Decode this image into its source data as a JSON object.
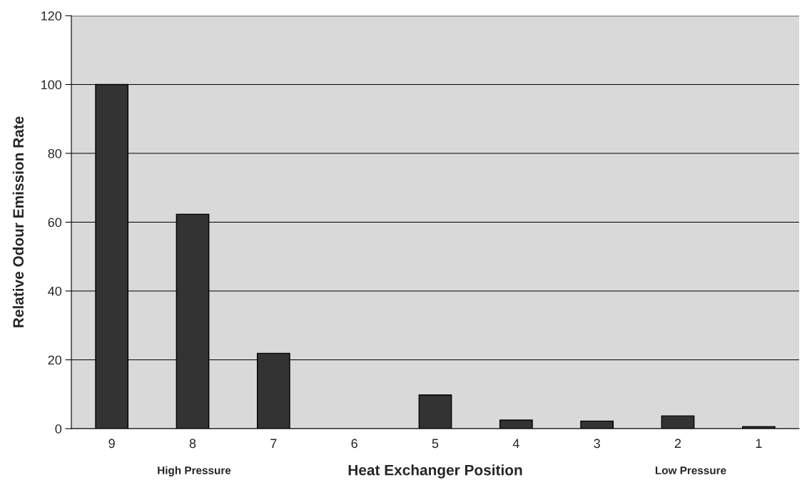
{
  "chart_data": {
    "type": "bar",
    "xlabel": "Heat Exchanger Position",
    "ylabel": "Relative Odour Emission Rate",
    "categories": [
      "9",
      "8",
      "7",
      "6",
      "5",
      "4",
      "3",
      "2",
      "1"
    ],
    "values": [
      100,
      62.3,
      21.9,
      0,
      9.8,
      2.5,
      2.2,
      3.7,
      0.6
    ],
    "color": "#333333",
    "ylim": [
      0,
      120
    ],
    "yticks": [
      0,
      20,
      40,
      60,
      80,
      100,
      120
    ],
    "grid": "y",
    "legend": false,
    "annotations": [
      "High Pressure",
      "Low Pressure"
    ]
  }
}
